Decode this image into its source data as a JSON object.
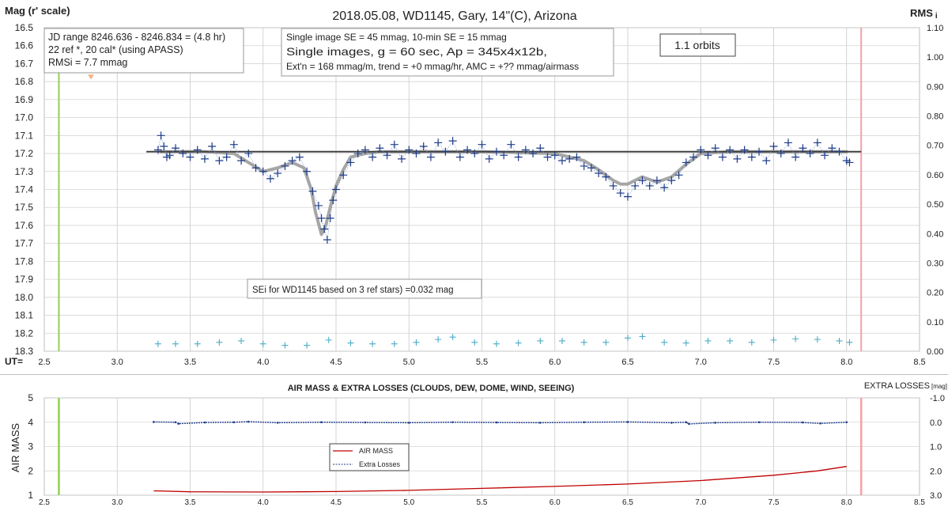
{
  "chart_data": [
    {
      "type": "scatter",
      "title": "2018.05.08,  WD1145, Gary, 14\"(C), Arizona",
      "ylabel": "Mag (r' scale)",
      "y2label_main": "RMS",
      "y2label_sub": "i",
      "xlabel": "UT=",
      "xlim": [
        2.5,
        8.5
      ],
      "ylim": [
        16.5,
        18.3
      ],
      "y_inverted": true,
      "y2lim": [
        0.0,
        1.1
      ],
      "grid": true,
      "x_ticks": [
        "2.5",
        "3.0",
        "3.5",
        "4.0",
        "4.5",
        "5.0",
        "5.5",
        "6.0",
        "6.5",
        "7.0",
        "7.5",
        "8.0",
        "8.5"
      ],
      "y_ticks": [
        "16.5",
        "16.6",
        "16.7",
        "16.8",
        "16.9",
        "17.0",
        "17.1",
        "17.2",
        "17.3",
        "17.4",
        "17.5",
        "17.6",
        "17.7",
        "17.8",
        "17.9",
        "18.0",
        "18.1",
        "18.2",
        "18.3"
      ],
      "y2_ticks": [
        "0.00",
        "0.10",
        "0.20",
        "0.30",
        "0.40",
        "0.50",
        "0.60",
        "0.70",
        "0.80",
        "0.90",
        "1.00",
        "1.10"
      ],
      "vertical_markers": [
        {
          "x": 2.6,
          "color": "#92d050"
        },
        {
          "x": 8.1,
          "color": "#f4a0a8"
        }
      ],
      "orange_marker": {
        "x": 2.82,
        "y": 16.77,
        "color": "#f4b183"
      },
      "trend_line": {
        "x": [
          3.2,
          8.1
        ],
        "y": [
          17.19,
          17.19
        ],
        "color": "#404040"
      },
      "model_curve": {
        "color": "#a6a6a6",
        "x": [
          3.3,
          3.6,
          3.8,
          3.9,
          4.0,
          4.1,
          4.2,
          4.28,
          4.33,
          4.36,
          4.4,
          4.43,
          4.46,
          4.5,
          4.55,
          4.6,
          4.7,
          4.8,
          5.0,
          5.5,
          6.0,
          6.2,
          6.3,
          6.4,
          6.45,
          6.5,
          6.55,
          6.6,
          6.7,
          6.8,
          6.9,
          7.0,
          7.2,
          8.0
        ],
        "y": [
          17.19,
          17.19,
          17.2,
          17.25,
          17.3,
          17.28,
          17.25,
          17.28,
          17.4,
          17.53,
          17.65,
          17.6,
          17.5,
          17.38,
          17.29,
          17.22,
          17.2,
          17.19,
          17.19,
          17.19,
          17.2,
          17.24,
          17.29,
          17.35,
          17.37,
          17.37,
          17.35,
          17.33,
          17.36,
          17.33,
          17.26,
          17.2,
          17.19,
          17.19
        ]
      },
      "series": [
        {
          "marker": "cross",
          "color": "#1f3c88",
          "x": [
            3.28,
            3.3,
            3.32,
            3.34,
            3.36,
            3.4,
            3.45,
            3.5,
            3.55,
            3.6,
            3.65,
            3.7,
            3.75,
            3.8,
            3.85,
            3.9,
            3.95,
            4.0,
            4.05,
            4.1,
            4.15,
            4.2,
            4.25,
            4.3,
            4.34,
            4.38,
            4.4,
            4.42,
            4.44,
            4.46,
            4.48,
            4.5,
            4.55,
            4.6,
            4.65,
            4.7,
            4.75,
            4.8,
            4.85,
            4.9,
            4.95,
            5.0,
            5.05,
            5.1,
            5.15,
            5.2,
            5.25,
            5.3,
            5.35,
            5.4,
            5.45,
            5.5,
            5.55,
            5.6,
            5.65,
            5.7,
            5.75,
            5.8,
            5.85,
            5.9,
            5.95,
            6.0,
            6.05,
            6.1,
            6.15,
            6.2,
            6.25,
            6.3,
            6.35,
            6.4,
            6.45,
            6.5,
            6.55,
            6.6,
            6.65,
            6.7,
            6.75,
            6.8,
            6.85,
            6.9,
            6.95,
            7.0,
            7.05,
            7.1,
            7.15,
            7.2,
            7.25,
            7.3,
            7.35,
            7.4,
            7.45,
            7.5,
            7.55,
            7.6,
            7.65,
            7.7,
            7.75,
            7.8,
            7.85,
            7.9,
            7.95,
            8.0,
            8.02
          ],
          "y": [
            17.18,
            17.1,
            17.16,
            17.22,
            17.21,
            17.17,
            17.2,
            17.22,
            17.18,
            17.23,
            17.16,
            17.24,
            17.22,
            17.15,
            17.24,
            17.2,
            17.28,
            17.3,
            17.34,
            17.31,
            17.27,
            17.24,
            17.22,
            17.3,
            17.41,
            17.49,
            17.56,
            17.62,
            17.68,
            17.56,
            17.46,
            17.4,
            17.32,
            17.25,
            17.2,
            17.18,
            17.22,
            17.17,
            17.21,
            17.15,
            17.23,
            17.18,
            17.2,
            17.16,
            17.22,
            17.14,
            17.19,
            17.13,
            17.22,
            17.18,
            17.2,
            17.15,
            17.23,
            17.19,
            17.21,
            17.15,
            17.22,
            17.18,
            17.2,
            17.17,
            17.22,
            17.21,
            17.24,
            17.23,
            17.22,
            17.27,
            17.28,
            17.31,
            17.33,
            17.38,
            17.42,
            17.44,
            17.38,
            17.35,
            17.38,
            17.35,
            17.39,
            17.35,
            17.32,
            17.25,
            17.22,
            17.18,
            17.21,
            17.17,
            17.22,
            17.18,
            17.23,
            17.18,
            17.22,
            17.19,
            17.24,
            17.16,
            17.2,
            17.14,
            17.22,
            17.17,
            17.2,
            17.14,
            17.21,
            17.17,
            17.19,
            17.24,
            17.25
          ]
        },
        {
          "marker": "cross",
          "color": "#4bacc6",
          "axis": "y2",
          "x": [
            3.28,
            3.4,
            3.55,
            3.7,
            3.85,
            4.0,
            4.15,
            4.3,
            4.45,
            4.6,
            4.75,
            4.9,
            5.05,
            5.2,
            5.3,
            5.45,
            5.6,
            5.75,
            5.9,
            6.05,
            6.2,
            6.35,
            6.5,
            6.6,
            6.75,
            6.9,
            7.05,
            7.2,
            7.35,
            7.5,
            7.65,
            7.8,
            7.95,
            8.02
          ],
          "y": [
            0.025,
            0.025,
            0.025,
            0.03,
            0.035,
            0.025,
            0.02,
            0.02,
            0.038,
            0.028,
            0.025,
            0.025,
            0.03,
            0.04,
            0.048,
            0.03,
            0.025,
            0.028,
            0.035,
            0.035,
            0.03,
            0.03,
            0.045,
            0.05,
            0.03,
            0.028,
            0.035,
            0.035,
            0.03,
            0.038,
            0.042,
            0.04,
            0.035,
            0.03
          ]
        }
      ],
      "annotations": [
        {
          "id": "box1",
          "lines": [
            "JD range  8246.636 - 8246.834  = (4.8 hr)",
            "22 ref *, 20 cal* (using APASS)",
            "RMSi = 7.7 mmag"
          ]
        },
        {
          "id": "box2",
          "lines": [
            "Single image SE = 45 mmag, 10-min SE = 15 mmag",
            "Single images, g = 60 sec, Ap = 345x4x12b,",
            "Ext'n = 168 mmag/m, trend = +0 mmag/hr, AMC = +?? mmag/airmass"
          ]
        },
        {
          "id": "box3",
          "lines": [
            "1.1 orbits"
          ]
        },
        {
          "id": "box4",
          "lines": [
            "SEi for WD1145 based on 3 ref stars) =0.032 mag"
          ]
        }
      ]
    },
    {
      "type": "line",
      "title": "AIR MASS & EXTRA LOSSES (CLOUDS, DEW, DOME, WIND, SEEING)",
      "ylabel": "AIR MASS",
      "y2label_main": "EXTRA LOSSES",
      "y2label_sub": "[mag]",
      "xlim": [
        2.5,
        8.5
      ],
      "ylim": [
        1,
        5
      ],
      "y2lim": [
        3.0,
        -1.0
      ],
      "grid": true,
      "x_ticks": [
        "2.5",
        "3.0",
        "3.5",
        "4.0",
        "4.5",
        "5.0",
        "5.5",
        "6.0",
        "6.5",
        "7.0",
        "7.5",
        "8.0",
        "8.5"
      ],
      "y_ticks": [
        "1",
        "2",
        "3",
        "4",
        "5"
      ],
      "y2_ticks": [
        "-1.0",
        "0.0",
        "1.0",
        "2.0",
        "3.0"
      ],
      "vertical_markers": [
        {
          "x": 2.6,
          "color": "#92d050"
        },
        {
          "x": 8.1,
          "color": "#f4a0a8"
        }
      ],
      "legend": {
        "placement": "center-left",
        "entries": [
          "AIR MASS",
          "Extra Losses"
        ]
      },
      "series": [
        {
          "name": "AIR MASS",
          "color": "#c00000",
          "x": [
            3.25,
            3.5,
            4.0,
            4.5,
            5.0,
            5.5,
            6.0,
            6.5,
            7.0,
            7.5,
            7.8,
            8.0
          ],
          "y": [
            1.18,
            1.14,
            1.13,
            1.15,
            1.2,
            1.28,
            1.36,
            1.46,
            1.6,
            1.82,
            2.0,
            2.18
          ]
        },
        {
          "name": "Extra Losses",
          "color": "#1f3c88",
          "axis": "y2",
          "x": [
            3.25,
            3.4,
            3.42,
            3.6,
            3.8,
            3.9,
            4.1,
            4.4,
            4.7,
            5.0,
            5.3,
            5.6,
            5.9,
            6.2,
            6.5,
            6.8,
            6.9,
            6.92,
            7.1,
            7.4,
            7.7,
            7.82,
            8.0
          ],
          "y": [
            -0.01,
            0.0,
            0.06,
            0.01,
            0.0,
            -0.02,
            0.02,
            0.0,
            0.01,
            0.02,
            0.0,
            0.01,
            0.02,
            0.0,
            -0.01,
            0.02,
            0.0,
            0.07,
            0.02,
            0.0,
            0.01,
            0.05,
            0.0
          ]
        }
      ]
    }
  ]
}
